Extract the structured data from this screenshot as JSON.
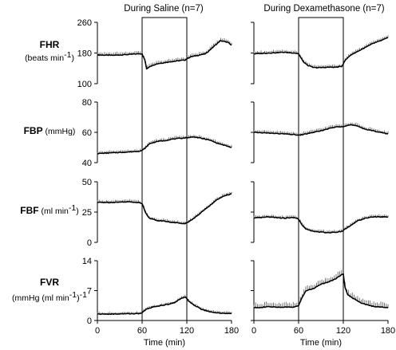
{
  "chart_data": {
    "type": "line",
    "columns": [
      {
        "id": "saline",
        "title": "During Saline (n=7)"
      },
      {
        "id": "dex",
        "title": "During Dexamethasone (n=7)"
      }
    ],
    "xlabel": "Time (min)",
    "xlim": [
      0,
      180
    ],
    "xticks": [
      "0",
      "60",
      "120",
      "180"
    ],
    "hypoxia_window": [
      60,
      120
    ],
    "rows": [
      {
        "id": "fhr",
        "label_bold": "FHR",
        "label_unit": "(beats min",
        "label_sup": "-1",
        "label_tail": ")",
        "ylim": [
          100,
          260
        ],
        "yticks": [
          "100",
          "180",
          "260"
        ],
        "series": {
          "saline": {
            "name": "During Saline (n=7)",
            "points": [
              [
                0,
                175
              ],
              [
                20,
                174
              ],
              [
                40,
                176
              ],
              [
                55,
                178
              ],
              [
                60,
                178
              ],
              [
                64,
                160
              ],
              [
                66,
                138
              ],
              [
                70,
                145
              ],
              [
                80,
                152
              ],
              [
                90,
                155
              ],
              [
                100,
                158
              ],
              [
                110,
                160
              ],
              [
                118,
                162
              ],
              [
                120,
                165
              ],
              [
                125,
                170
              ],
              [
                135,
                174
              ],
              [
                145,
                178
              ],
              [
                155,
                195
              ],
              [
                165,
                212
              ],
              [
                175,
                208
              ],
              [
                180,
                200
              ]
            ],
            "error": 8
          },
          "dex": {
            "name": "During Dexamethasone (n=7)",
            "points": [
              [
                0,
                178
              ],
              [
                20,
                180
              ],
              [
                40,
                182
              ],
              [
                55,
                180
              ],
              [
                60,
                178
              ],
              [
                66,
                158
              ],
              [
                72,
                148
              ],
              [
                80,
                142
              ],
              [
                90,
                142
              ],
              [
                100,
                143
              ],
              [
                110,
                143
              ],
              [
                118,
                145
              ],
              [
                122,
                160
              ],
              [
                130,
                175
              ],
              [
                140,
                185
              ],
              [
                150,
                195
              ],
              [
                160,
                205
              ],
              [
                170,
                212
              ],
              [
                180,
                220
              ]
            ],
            "error": 7
          }
        }
      },
      {
        "id": "fbp",
        "label_bold": "FBP",
        "label_unit": " (mmHg)",
        "label_sup": "",
        "label_tail": "",
        "ylim": [
          40,
          80
        ],
        "yticks": [
          "40",
          "60",
          "80"
        ],
        "series": {
          "saline": {
            "name": "During Saline (n=7)",
            "points": [
              [
                0,
                46
              ],
              [
                20,
                46.5
              ],
              [
                40,
                47
              ],
              [
                55,
                47.5
              ],
              [
                60,
                48
              ],
              [
                65,
                50
              ],
              [
                70,
                52.5
              ],
              [
                80,
                54
              ],
              [
                90,
                54.5
              ],
              [
                100,
                55.5
              ],
              [
                110,
                56
              ],
              [
                120,
                56.5
              ],
              [
                130,
                57
              ],
              [
                140,
                56
              ],
              [
                150,
                55
              ],
              [
                160,
                53
              ],
              [
                170,
                51.5
              ],
              [
                180,
                50
              ]
            ],
            "error": 1.6
          },
          "dex": {
            "name": "During Dexamethasone (n=7)",
            "points": [
              [
                0,
                60
              ],
              [
                20,
                59.5
              ],
              [
                40,
                59
              ],
              [
                55,
                58.5
              ],
              [
                60,
                58
              ],
              [
                70,
                59
              ],
              [
                80,
                60
              ],
              [
                90,
                61
              ],
              [
                100,
                62.5
              ],
              [
                110,
                63.5
              ],
              [
                120,
                64
              ],
              [
                130,
                65
              ],
              [
                140,
                64
              ],
              [
                150,
                62
              ],
              [
                160,
                61
              ],
              [
                170,
                60
              ],
              [
                180,
                59
              ]
            ],
            "error": 1.8
          }
        }
      },
      {
        "id": "fbf",
        "label_bold": "FBF",
        "label_unit": " (ml min",
        "label_sup": "-1",
        "label_tail": ")",
        "ylim": [
          0,
          50
        ],
        "yticks": [
          "0",
          "25",
          "50"
        ],
        "series": {
          "saline": {
            "name": "During Saline (n=7)",
            "points": [
              [
                0,
                33
              ],
              [
                20,
                33
              ],
              [
                40,
                33.5
              ],
              [
                55,
                33
              ],
              [
                60,
                32
              ],
              [
                65,
                24
              ],
              [
                70,
                20
              ],
              [
                80,
                18
              ],
              [
                90,
                17.5
              ],
              [
                100,
                16.5
              ],
              [
                110,
                16
              ],
              [
                118,
                15.5
              ],
              [
                122,
                17
              ],
              [
                130,
                20
              ],
              [
                140,
                25
              ],
              [
                150,
                30
              ],
              [
                160,
                35
              ],
              [
                170,
                38.5
              ],
              [
                180,
                40
              ]
            ],
            "error": 2
          },
          "dex": {
            "name": "During Dexamethasone (n=7)",
            "points": [
              [
                0,
                20
              ],
              [
                20,
                21
              ],
              [
                40,
                20
              ],
              [
                55,
                20.5
              ],
              [
                60,
                19
              ],
              [
                65,
                14
              ],
              [
                70,
                11
              ],
              [
                80,
                9
              ],
              [
                90,
                8.5
              ],
              [
                100,
                8
              ],
              [
                110,
                8.5
              ],
              [
                118,
                9
              ],
              [
                122,
                11
              ],
              [
                130,
                14
              ],
              [
                140,
                18
              ],
              [
                150,
                20
              ],
              [
                160,
                21
              ],
              [
                170,
                21
              ],
              [
                180,
                21
              ]
            ],
            "error": 2
          }
        }
      },
      {
        "id": "fvr",
        "label_bold": "FVR",
        "label_unit": "(mmHg (ml min",
        "label_sup": "-1",
        "label_tail": ")",
        "label_sup2": "-1",
        "ylim": [
          0,
          14
        ],
        "yticks": [
          "0",
          "7",
          "14"
        ],
        "series": {
          "saline": {
            "name": "During Saline (n=7)",
            "points": [
              [
                0,
                1.5
              ],
              [
                20,
                1.5
              ],
              [
                40,
                1.6
              ],
              [
                55,
                1.6
              ],
              [
                60,
                1.8
              ],
              [
                65,
                2.6
              ],
              [
                75,
                3.2
              ],
              [
                85,
                3.5
              ],
              [
                95,
                3.8
              ],
              [
                105,
                4.3
              ],
              [
                112,
                5.2
              ],
              [
                118,
                5.5
              ],
              [
                122,
                4.6
              ],
              [
                130,
                3.6
              ],
              [
                140,
                2.6
              ],
              [
                150,
                2.1
              ],
              [
                160,
                1.8
              ],
              [
                170,
                1.7
              ],
              [
                180,
                1.6
              ]
            ],
            "error": 0.5
          },
          "dex": {
            "name": "During Dexamethasone (n=7)",
            "points": [
              [
                0,
                3
              ],
              [
                20,
                3.2
              ],
              [
                40,
                3.1
              ],
              [
                55,
                3.2
              ],
              [
                60,
                3.5
              ],
              [
                65,
                5.5
              ],
              [
                70,
                7
              ],
              [
                80,
                7.5
              ],
              [
                90,
                8.5
              ],
              [
                100,
                9
              ],
              [
                110,
                9.8
              ],
              [
                116,
                10.5
              ],
              [
                120,
                11
              ],
              [
                122,
                8
              ],
              [
                126,
                6
              ],
              [
                135,
                5
              ],
              [
                145,
                4
              ],
              [
                155,
                3.5
              ],
              [
                165,
                3.2
              ],
              [
                180,
                3
              ]
            ],
            "error": 1.2
          }
        }
      }
    ]
  }
}
